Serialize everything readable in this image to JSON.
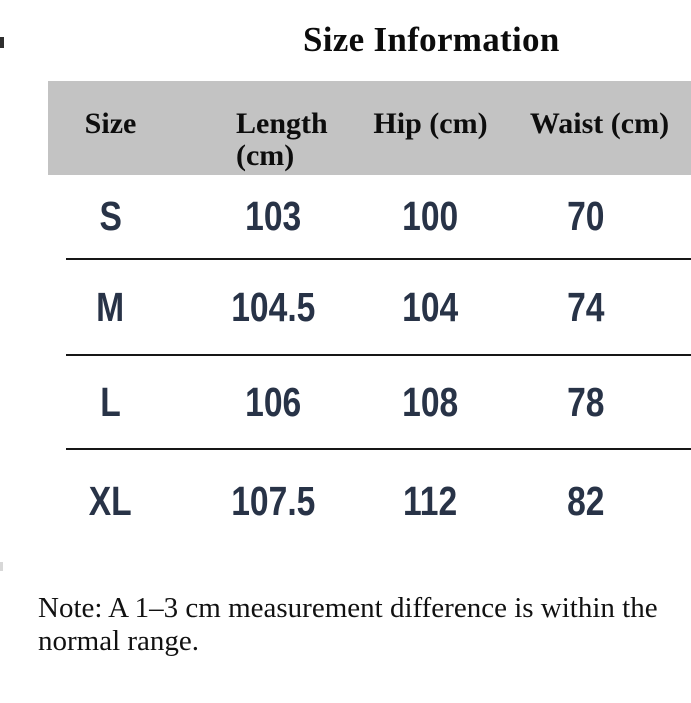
{
  "title": "Size Information",
  "table": {
    "columns": [
      "Size",
      "Length (cm)",
      "Hip (cm)",
      "Waist (cm)"
    ],
    "rows": [
      {
        "size": "S",
        "length": "103",
        "hip": "100",
        "waist": "70"
      },
      {
        "size": "M",
        "length": "104.5",
        "hip": "104",
        "waist": "74"
      },
      {
        "size": "L",
        "length": "106",
        "hip": "108",
        "waist": "78"
      },
      {
        "size": "XL",
        "length": "107.5",
        "hip": "112",
        "waist": "82"
      }
    ]
  },
  "note": "Note: A 1–3 cm measurement difference is within the normal range.",
  "colors": {
    "header_background": "#c3c3c3",
    "body_text": "#283347",
    "divider": "#161616"
  },
  "chart_data": {
    "type": "table",
    "title": "Size Information",
    "categories": [
      "S",
      "M",
      "L",
      "XL"
    ],
    "series": [
      {
        "name": "Length (cm)",
        "values": [
          103,
          104.5,
          106,
          107.5
        ]
      },
      {
        "name": "Hip (cm)",
        "values": [
          100,
          104,
          108,
          112
        ]
      },
      {
        "name": "Waist (cm)",
        "values": [
          70,
          74,
          78,
          82
        ]
      }
    ]
  }
}
